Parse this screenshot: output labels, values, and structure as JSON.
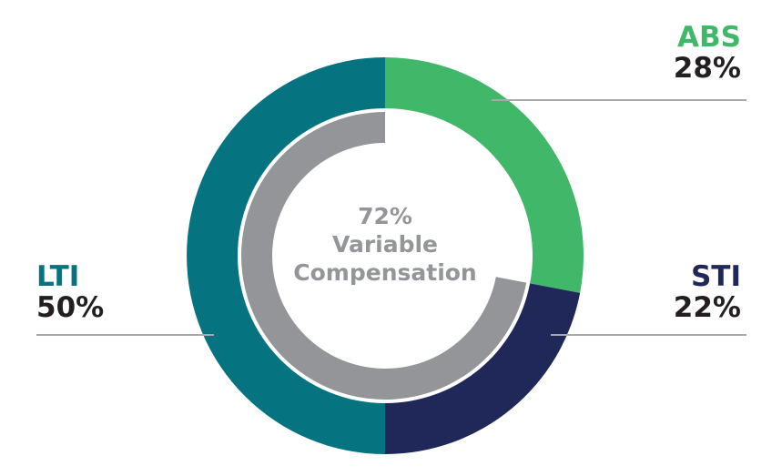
{
  "chart_data": {
    "type": "pie",
    "variant": "nested-donut",
    "title": "",
    "outer_ring": [
      {
        "name": "ABS",
        "label": "28%",
        "value": 28,
        "color": "#41b869"
      },
      {
        "name": "STI",
        "label": "22%",
        "value": 22,
        "color": "#1f2858"
      },
      {
        "name": "LTI",
        "label": "50%",
        "value": 50,
        "color": "#057380"
      }
    ],
    "inner_ring": {
      "value": 72,
      "color": "#939598",
      "direction": "counterclockwise from top"
    },
    "center_label": {
      "value": "72%",
      "line1": "Variable",
      "line2": "Compensation"
    },
    "leader_line_color": "#a7a9ac"
  }
}
